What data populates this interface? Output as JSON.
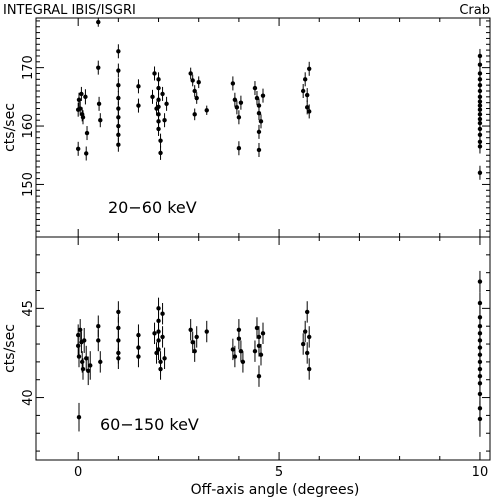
{
  "header": {
    "instrument": "INTEGRAL IBIS/ISGRI",
    "source": "Crab"
  },
  "chart_data": {
    "type": "scatter",
    "xlabel": "Off-axis angle (degrees)",
    "xlim": [
      -1.05,
      10.25
    ],
    "x_ticks": [
      0,
      5,
      10
    ],
    "x_tick_labels": [
      "0",
      "5",
      "10"
    ],
    "panels": [
      {
        "name": "20-60 keV",
        "label": "20−60 keV",
        "ylabel": "cts/sec",
        "ylim": [
          141,
          178.5
        ],
        "y_ticks": [
          150,
          160,
          170
        ],
        "y_tick_labels": [
          "150",
          "160",
          "170"
        ],
        "points": [
          {
            "x": 0.0,
            "y": 156.1,
            "err": 1.2
          },
          {
            "x": 0.0,
            "y": 162.8,
            "err": 1.2
          },
          {
            "x": 0.02,
            "y": 164.5,
            "err": 1.2
          },
          {
            "x": 0.05,
            "y": 163.0,
            "err": 1.2
          },
          {
            "x": 0.08,
            "y": 165.5,
            "err": 1.2
          },
          {
            "x": 0.1,
            "y": 162.0,
            "err": 1.2
          },
          {
            "x": 0.12,
            "y": 161.5,
            "err": 1.2
          },
          {
            "x": 0.18,
            "y": 165.0,
            "err": 1.3
          },
          {
            "x": 0.2,
            "y": 155.3,
            "err": 1.2
          },
          {
            "x": 0.22,
            "y": 158.8,
            "err": 1.2
          },
          {
            "x": 0.5,
            "y": 177.8,
            "err": 0.8
          },
          {
            "x": 0.5,
            "y": 170.0,
            "err": 1.2
          },
          {
            "x": 0.52,
            "y": 163.8,
            "err": 1.2
          },
          {
            "x": 0.55,
            "y": 161.0,
            "err": 1.2
          },
          {
            "x": 1.0,
            "y": 172.8,
            "err": 1.2
          },
          {
            "x": 1.0,
            "y": 169.5,
            "err": 1.2
          },
          {
            "x": 1.0,
            "y": 167.0,
            "err": 1.2
          },
          {
            "x": 1.0,
            "y": 164.8,
            "err": 1.2
          },
          {
            "x": 1.0,
            "y": 163.0,
            "err": 1.2
          },
          {
            "x": 1.0,
            "y": 161.5,
            "err": 1.2
          },
          {
            "x": 1.0,
            "y": 160.0,
            "err": 1.2
          },
          {
            "x": 1.0,
            "y": 158.5,
            "err": 1.2
          },
          {
            "x": 1.0,
            "y": 156.8,
            "err": 1.2
          },
          {
            "x": 1.5,
            "y": 166.8,
            "err": 1.2
          },
          {
            "x": 1.5,
            "y": 163.5,
            "err": 1.2
          },
          {
            "x": 1.85,
            "y": 165.0,
            "err": 1.2
          },
          {
            "x": 1.9,
            "y": 169.0,
            "err": 1.2
          },
          {
            "x": 1.95,
            "y": 163.0,
            "err": 1.2
          },
          {
            "x": 2.0,
            "y": 168.0,
            "err": 1.2
          },
          {
            "x": 2.0,
            "y": 166.5,
            "err": 1.2
          },
          {
            "x": 2.0,
            "y": 164.5,
            "err": 1.2
          },
          {
            "x": 2.0,
            "y": 163.3,
            "err": 1.2
          },
          {
            "x": 2.0,
            "y": 162.0,
            "err": 1.2
          },
          {
            "x": 2.0,
            "y": 160.8,
            "err": 1.2
          },
          {
            "x": 2.0,
            "y": 159.5,
            "err": 1.2
          },
          {
            "x": 2.05,
            "y": 157.5,
            "err": 1.2
          },
          {
            "x": 2.05,
            "y": 155.4,
            "err": 1.2
          },
          {
            "x": 2.1,
            "y": 165.5,
            "err": 1.2
          },
          {
            "x": 2.15,
            "y": 161.0,
            "err": 1.2
          },
          {
            "x": 2.2,
            "y": 163.8,
            "err": 1.2
          },
          {
            "x": 2.8,
            "y": 169.0,
            "err": 1.0
          },
          {
            "x": 2.85,
            "y": 167.8,
            "err": 1.0
          },
          {
            "x": 2.9,
            "y": 166.0,
            "err": 1.0
          },
          {
            "x": 2.95,
            "y": 164.8,
            "err": 1.0
          },
          {
            "x": 2.9,
            "y": 162.0,
            "err": 1.0
          },
          {
            "x": 3.0,
            "y": 167.5,
            "err": 1.0
          },
          {
            "x": 3.2,
            "y": 162.7,
            "err": 0.8
          },
          {
            "x": 3.85,
            "y": 167.3,
            "err": 1.2
          },
          {
            "x": 3.9,
            "y": 164.5,
            "err": 1.2
          },
          {
            "x": 3.95,
            "y": 163.2,
            "err": 1.2
          },
          {
            "x": 4.0,
            "y": 161.5,
            "err": 1.2
          },
          {
            "x": 4.0,
            "y": 156.2,
            "err": 1.2
          },
          {
            "x": 4.05,
            "y": 164.0,
            "err": 1.2
          },
          {
            "x": 4.4,
            "y": 166.5,
            "err": 1.2
          },
          {
            "x": 4.45,
            "y": 164.8,
            "err": 1.2
          },
          {
            "x": 4.5,
            "y": 163.5,
            "err": 1.2
          },
          {
            "x": 4.5,
            "y": 162.2,
            "err": 1.2
          },
          {
            "x": 4.55,
            "y": 160.8,
            "err": 1.2
          },
          {
            "x": 4.5,
            "y": 159.0,
            "err": 1.2
          },
          {
            "x": 4.5,
            "y": 155.9,
            "err": 1.2
          },
          {
            "x": 4.6,
            "y": 165.2,
            "err": 1.2
          },
          {
            "x": 5.6,
            "y": 166.0,
            "err": 1.2
          },
          {
            "x": 5.65,
            "y": 168.0,
            "err": 1.2
          },
          {
            "x": 5.7,
            "y": 165.3,
            "err": 1.2
          },
          {
            "x": 5.7,
            "y": 163.2,
            "err": 1.2
          },
          {
            "x": 5.75,
            "y": 169.8,
            "err": 1.2
          },
          {
            "x": 5.75,
            "y": 162.5,
            "err": 1.2
          },
          {
            "x": 10.0,
            "y": 172.0,
            "err": 1.2
          },
          {
            "x": 10.0,
            "y": 170.5,
            "err": 1.2
          },
          {
            "x": 10.0,
            "y": 169.0,
            "err": 1.2
          },
          {
            "x": 10.0,
            "y": 168.0,
            "err": 1.2
          },
          {
            "x": 10.0,
            "y": 167.0,
            "err": 1.2
          },
          {
            "x": 10.0,
            "y": 166.0,
            "err": 1.2
          },
          {
            "x": 10.0,
            "y": 165.0,
            "err": 1.2
          },
          {
            "x": 10.0,
            "y": 164.2,
            "err": 1.2
          },
          {
            "x": 10.0,
            "y": 163.5,
            "err": 1.2
          },
          {
            "x": 10.0,
            "y": 162.8,
            "err": 1.2
          },
          {
            "x": 10.0,
            "y": 162.0,
            "err": 1.2
          },
          {
            "x": 10.0,
            "y": 161.2,
            "err": 1.2
          },
          {
            "x": 10.0,
            "y": 160.5,
            "err": 1.2
          },
          {
            "x": 10.0,
            "y": 159.5,
            "err": 1.2
          },
          {
            "x": 10.0,
            "y": 158.5,
            "err": 1.2
          },
          {
            "x": 10.0,
            "y": 157.3,
            "err": 1.2
          },
          {
            "x": 10.0,
            "y": 156.5,
            "err": 1.2
          },
          {
            "x": 10.0,
            "y": 152.0,
            "err": 1.2
          }
        ]
      },
      {
        "name": "60-150 keV",
        "label": "60−150 keV",
        "ylabel": "cts/sec",
        "ylim": [
          36.5,
          49.0
        ],
        "y_ticks": [
          40,
          45
        ],
        "y_tick_labels": [
          "40",
          "45"
        ],
        "points": [
          {
            "x": 0.0,
            "y": 43.5,
            "err": 0.6
          },
          {
            "x": 0.0,
            "y": 42.9,
            "err": 0.6
          },
          {
            "x": 0.02,
            "y": 42.3,
            "err": 0.6
          },
          {
            "x": 0.02,
            "y": 38.9,
            "err": 0.8
          },
          {
            "x": 0.05,
            "y": 43.8,
            "err": 0.6
          },
          {
            "x": 0.08,
            "y": 43.1,
            "err": 0.6
          },
          {
            "x": 0.1,
            "y": 42.0,
            "err": 0.6
          },
          {
            "x": 0.12,
            "y": 41.6,
            "err": 0.6
          },
          {
            "x": 0.15,
            "y": 43.2,
            "err": 0.7
          },
          {
            "x": 0.2,
            "y": 42.2,
            "err": 0.7
          },
          {
            "x": 0.25,
            "y": 41.5,
            "err": 0.8
          },
          {
            "x": 0.3,
            "y": 41.8,
            "err": 0.8
          },
          {
            "x": 0.5,
            "y": 44.0,
            "err": 0.6
          },
          {
            "x": 0.5,
            "y": 43.2,
            "err": 0.6
          },
          {
            "x": 0.55,
            "y": 42.0,
            "err": 0.6
          },
          {
            "x": 1.0,
            "y": 44.8,
            "err": 0.6
          },
          {
            "x": 1.0,
            "y": 43.9,
            "err": 0.6
          },
          {
            "x": 1.0,
            "y": 43.2,
            "err": 0.6
          },
          {
            "x": 1.0,
            "y": 42.5,
            "err": 0.6
          },
          {
            "x": 1.0,
            "y": 42.2,
            "err": 0.6
          },
          {
            "x": 1.5,
            "y": 43.5,
            "err": 0.6
          },
          {
            "x": 1.5,
            "y": 42.8,
            "err": 0.6
          },
          {
            "x": 1.5,
            "y": 42.3,
            "err": 0.6
          },
          {
            "x": 1.9,
            "y": 43.6,
            "err": 0.6
          },
          {
            "x": 1.95,
            "y": 42.5,
            "err": 0.6
          },
          {
            "x": 2.0,
            "y": 45.0,
            "err": 0.6
          },
          {
            "x": 2.0,
            "y": 44.3,
            "err": 0.6
          },
          {
            "x": 2.0,
            "y": 43.7,
            "err": 0.6
          },
          {
            "x": 2.0,
            "y": 43.2,
            "err": 0.6
          },
          {
            "x": 2.0,
            "y": 42.7,
            "err": 0.6
          },
          {
            "x": 2.05,
            "y": 42.0,
            "err": 0.6
          },
          {
            "x": 2.05,
            "y": 41.6,
            "err": 0.6
          },
          {
            "x": 2.1,
            "y": 44.7,
            "err": 0.6
          },
          {
            "x": 2.1,
            "y": 43.4,
            "err": 0.6
          },
          {
            "x": 2.15,
            "y": 42.2,
            "err": 0.6
          },
          {
            "x": 2.8,
            "y": 43.8,
            "err": 0.6
          },
          {
            "x": 2.85,
            "y": 43.1,
            "err": 0.6
          },
          {
            "x": 2.9,
            "y": 42.6,
            "err": 0.6
          },
          {
            "x": 2.95,
            "y": 43.4,
            "err": 0.6
          },
          {
            "x": 3.2,
            "y": 43.7,
            "err": 0.6
          },
          {
            "x": 3.85,
            "y": 42.7,
            "err": 0.6
          },
          {
            "x": 3.9,
            "y": 42.3,
            "err": 0.6
          },
          {
            "x": 4.0,
            "y": 43.8,
            "err": 0.6
          },
          {
            "x": 4.0,
            "y": 43.3,
            "err": 0.6
          },
          {
            "x": 4.05,
            "y": 42.6,
            "err": 0.6
          },
          {
            "x": 4.1,
            "y": 42.0,
            "err": 0.6
          },
          {
            "x": 4.4,
            "y": 42.6,
            "err": 0.6
          },
          {
            "x": 4.45,
            "y": 43.9,
            "err": 0.6
          },
          {
            "x": 4.5,
            "y": 43.4,
            "err": 0.6
          },
          {
            "x": 4.5,
            "y": 42.9,
            "err": 0.6
          },
          {
            "x": 4.55,
            "y": 42.4,
            "err": 0.6
          },
          {
            "x": 4.5,
            "y": 41.2,
            "err": 0.6
          },
          {
            "x": 4.6,
            "y": 43.6,
            "err": 0.6
          },
          {
            "x": 5.6,
            "y": 43.0,
            "err": 0.6
          },
          {
            "x": 5.65,
            "y": 43.7,
            "err": 0.6
          },
          {
            "x": 5.7,
            "y": 42.5,
            "err": 0.6
          },
          {
            "x": 5.7,
            "y": 44.8,
            "err": 0.6
          },
          {
            "x": 5.75,
            "y": 43.4,
            "err": 0.6
          },
          {
            "x": 5.75,
            "y": 41.6,
            "err": 0.6
          },
          {
            "x": 10.0,
            "y": 46.5,
            "err": 0.6
          },
          {
            "x": 10.0,
            "y": 45.3,
            "err": 0.6
          },
          {
            "x": 10.0,
            "y": 44.5,
            "err": 0.6
          },
          {
            "x": 10.0,
            "y": 44.0,
            "err": 0.6
          },
          {
            "x": 10.0,
            "y": 43.6,
            "err": 0.6
          },
          {
            "x": 10.0,
            "y": 43.2,
            "err": 0.6
          },
          {
            "x": 10.0,
            "y": 42.8,
            "err": 0.6
          },
          {
            "x": 10.0,
            "y": 42.4,
            "err": 0.6
          },
          {
            "x": 10.0,
            "y": 42.0,
            "err": 0.6
          },
          {
            "x": 10.0,
            "y": 41.6,
            "err": 0.6
          },
          {
            "x": 10.0,
            "y": 41.2,
            "err": 0.6
          },
          {
            "x": 10.0,
            "y": 40.8,
            "err": 0.6
          },
          {
            "x": 10.0,
            "y": 40.2,
            "err": 0.6
          },
          {
            "x": 10.0,
            "y": 39.4,
            "err": 0.7
          },
          {
            "x": 10.0,
            "y": 38.8,
            "err": 1.0
          }
        ]
      }
    ]
  }
}
